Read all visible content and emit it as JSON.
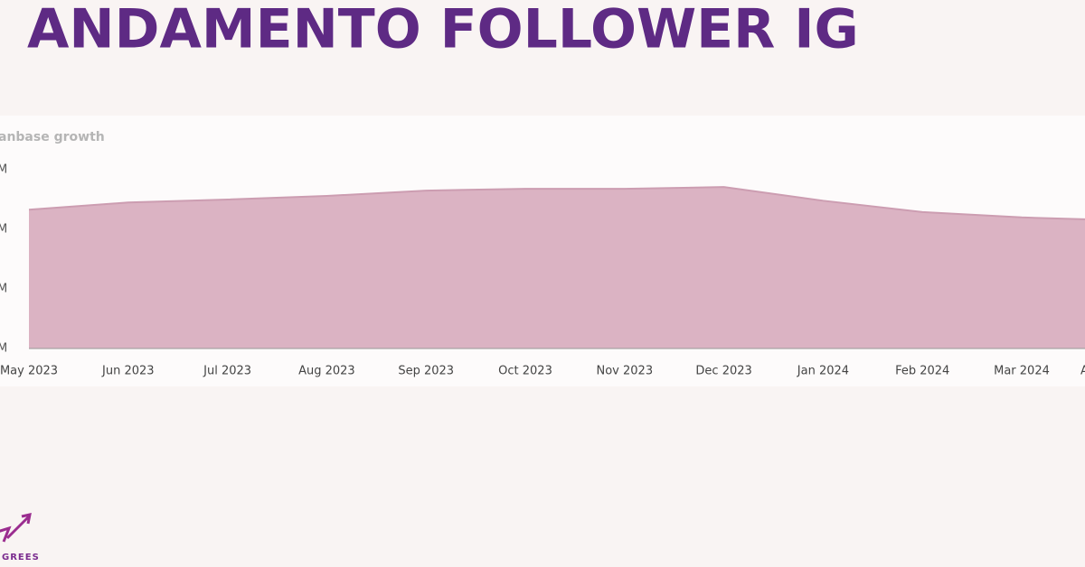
{
  "slide_title": "ANDAMENTO FOLLOWER IG",
  "logo_text": "GREES",
  "chart_data": {
    "type": "area",
    "title": "anbase growth",
    "categories": [
      "May 2023",
      "Jun 2023",
      "Jul 2023",
      "Aug 2023",
      "Sep 2023",
      "Oct 2023",
      "Nov 2023",
      "Dec 2023",
      "Jan 2024",
      "Feb 2024",
      "Mar 2024",
      "A"
    ],
    "series": [
      {
        "name": "Fanbase",
        "color": "#dbb3c3",
        "values": [
          2.33,
          2.45,
          2.5,
          2.56,
          2.65,
          2.68,
          2.68,
          2.71,
          2.48,
          2.29,
          2.2,
          2.15
        ]
      }
    ],
    "ylim": [
      0,
      3
    ],
    "yticks": [
      {
        "value": 0,
        "label": "M"
      },
      {
        "value": 1,
        "label": "M"
      },
      {
        "value": 2,
        "label": "M"
      },
      {
        "value": 3,
        "label": "M"
      }
    ]
  }
}
